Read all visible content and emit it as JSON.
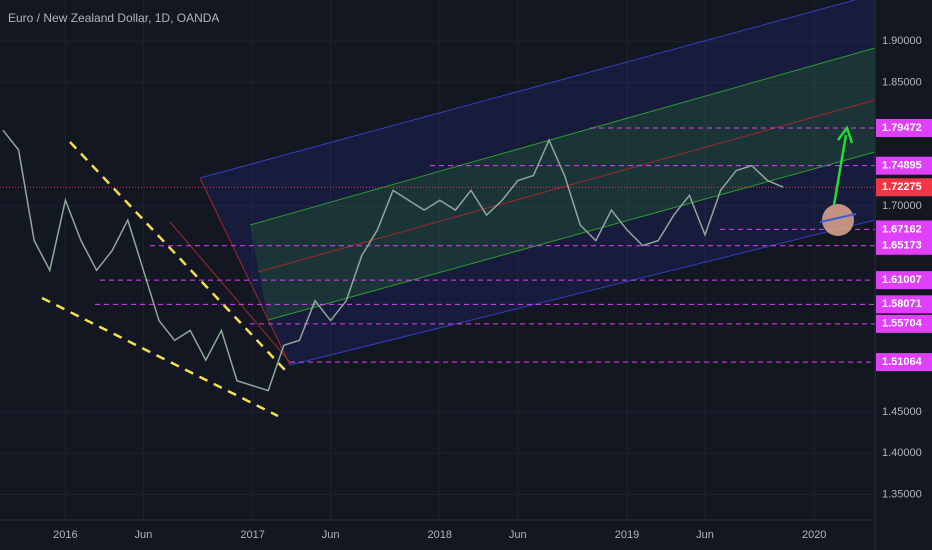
{
  "chart_data": {
    "type": "line",
    "title": "Euro / New Zealand Dollar, 1D, OANDA",
    "categories": [
      null,
      null,
      null,
      null,
      "2016",
      null,
      null,
      null,
      null,
      "Jun",
      null,
      null,
      null,
      null,
      null,
      null,
      "2017",
      null,
      null,
      null,
      null,
      "Jun",
      null,
      null,
      null,
      null,
      null,
      null,
      "2018",
      null,
      null,
      null,
      null,
      "Jun",
      null,
      null,
      null,
      null,
      null,
      null,
      "2019",
      null,
      null,
      null,
      null,
      "Jun",
      null,
      null,
      null,
      null,
      null,
      null,
      "2020",
      null
    ],
    "values": [
      1.792,
      1.768,
      1.658,
      1.622,
      1.707,
      1.658,
      1.622,
      1.646,
      1.683,
      1.622,
      1.561,
      1.537,
      1.549,
      1.513,
      1.549,
      1.488,
      1.482,
      1.476,
      1.531,
      1.537,
      1.585,
      1.561,
      1.585,
      1.64,
      1.671,
      1.719,
      1.707,
      1.695,
      1.707,
      1.695,
      1.719,
      1.689,
      1.707,
      1.731,
      1.737,
      1.78,
      1.737,
      1.677,
      1.658,
      1.695,
      1.671,
      1.652,
      1.658,
      1.689,
      1.713,
      1.665,
      1.719,
      1.743,
      1.749,
      1.731,
      1.723,
      null,
      null,
      null
    ],
    "color": "#8fa89a",
    "ylim": [
      1.319,
      1.95
    ],
    "yticks": [
      {
        "value": 1.35,
        "label": "1.35000"
      },
      {
        "value": 1.4,
        "label": "1.40000"
      },
      {
        "value": 1.45,
        "label": "1.45000"
      },
      {
        "value": 1.7,
        "label": "1.70000"
      },
      {
        "value": 1.85,
        "label": "1.85000"
      },
      {
        "value": 1.9,
        "label": "1.90000"
      }
    ],
    "levels": [
      1.79472,
      1.74895,
      1.67162,
      1.65173,
      1.61007,
      1.58071,
      1.55704,
      1.51064
    ],
    "level_color": "#e040fb",
    "last_price": 1.72275,
    "last_price_color": "#f23645",
    "grid": true
  }
}
